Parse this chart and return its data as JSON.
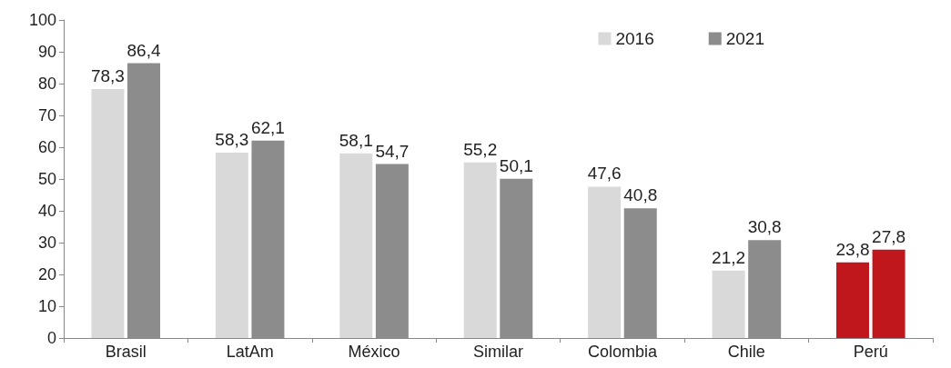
{
  "chart_data": {
    "type": "bar",
    "categories": [
      "Brasil",
      "LatAm",
      "México",
      "Similar",
      "Colombia",
      "Chile",
      "Perú"
    ],
    "series": [
      {
        "name": "2016",
        "color": "#d9d9d9",
        "colors": [
          "#d9d9d9",
          "#d9d9d9",
          "#d9d9d9",
          "#d9d9d9",
          "#d9d9d9",
          "#d9d9d9",
          "#c0171d"
        ],
        "values": [
          78.3,
          58.3,
          58.1,
          55.2,
          47.6,
          21.2,
          23.8
        ],
        "value_labels": [
          "78,3",
          "58,3",
          "58,1",
          "55,2",
          "47,6",
          "21,2",
          "23,8"
        ]
      },
      {
        "name": "2021",
        "color": "#8c8c8c",
        "colors": [
          "#8c8c8c",
          "#8c8c8c",
          "#8c8c8c",
          "#8c8c8c",
          "#8c8c8c",
          "#8c8c8c",
          "#c0171d"
        ],
        "values": [
          86.4,
          62.1,
          54.7,
          50.1,
          40.8,
          30.8,
          27.8
        ],
        "value_labels": [
          "86,4",
          "62,1",
          "54,7",
          "50,1",
          "40,8",
          "30,8",
          "27,8"
        ]
      }
    ],
    "ylim": [
      0,
      100
    ],
    "yticks": [
      0,
      10,
      20,
      30,
      40,
      50,
      60,
      70,
      80,
      90,
      100
    ],
    "grid": false,
    "legend": "top right"
  }
}
